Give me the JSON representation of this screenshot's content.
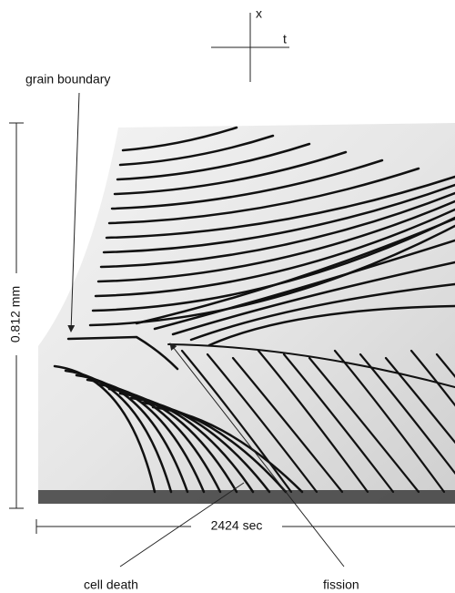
{
  "axes": {
    "x": "x",
    "t": "t"
  },
  "annotations": {
    "grain_boundary": "grain boundary",
    "cell_death": "cell death",
    "fission": "fission"
  },
  "scale": {
    "height": "0.812 mm",
    "width": "2424 sec"
  }
}
